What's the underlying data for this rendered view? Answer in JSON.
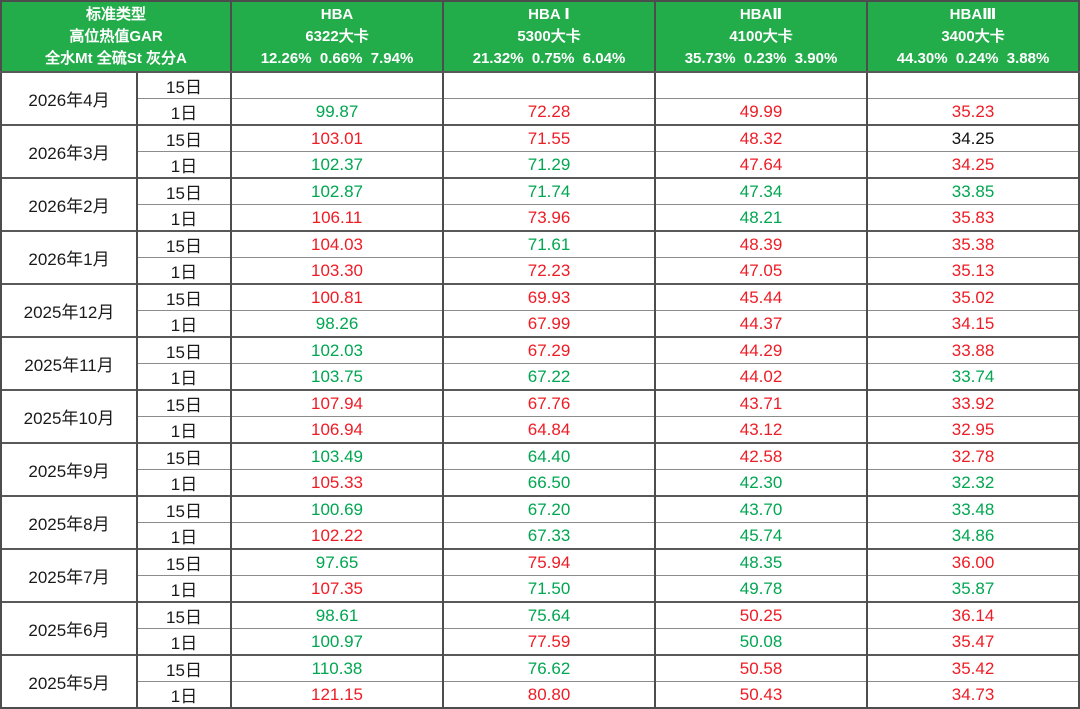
{
  "colors": {
    "header_bg": "#22ac4a",
    "header_text": "#ffffff",
    "green": "#00a651",
    "red": "#ee1c25",
    "black": "#111111",
    "grid_line": "#8c8c8c",
    "column_line": "#4d4d4d"
  },
  "chart_data": {
    "type": "table",
    "header": {
      "spec_lines": [
        "标准类型",
        "高位热值GAR",
        "全水Mt 全硫St 灰分A"
      ],
      "products": [
        {
          "name": "HBA",
          "kcal": "6322大卡",
          "specs": "12.26%  0.66%  7.94%"
        },
        {
          "name": "HBA Ⅰ",
          "kcal": "5300大卡",
          "specs": "21.32%  0.75%  6.04%"
        },
        {
          "name": "HBAⅡ",
          "kcal": "4100大卡",
          "specs": "35.73%  0.23%  3.90%"
        },
        {
          "name": "HBAⅢ",
          "kcal": "3400大卡",
          "specs": "44.30%  0.24%  3.88%"
        }
      ]
    },
    "day_labels": [
      "15日",
      "1日"
    ],
    "months": [
      {
        "month": "2026年4月",
        "d15": [
          {
            "v": "",
            "c": "k"
          },
          {
            "v": "",
            "c": "k"
          },
          {
            "v": "",
            "c": "k"
          },
          {
            "v": "",
            "c": "k"
          }
        ],
        "d1": [
          {
            "v": "99.87",
            "c": "g"
          },
          {
            "v": "72.28",
            "c": "r"
          },
          {
            "v": "49.99",
            "c": "r"
          },
          {
            "v": "35.23",
            "c": "r"
          }
        ]
      },
      {
        "month": "2026年3月",
        "d15": [
          {
            "v": "103.01",
            "c": "r"
          },
          {
            "v": "71.55",
            "c": "r"
          },
          {
            "v": "48.32",
            "c": "r"
          },
          {
            "v": "34.25",
            "c": "k"
          }
        ],
        "d1": [
          {
            "v": "102.37",
            "c": "g"
          },
          {
            "v": "71.29",
            "c": "g"
          },
          {
            "v": "47.64",
            "c": "r"
          },
          {
            "v": "34.25",
            "c": "r"
          }
        ]
      },
      {
        "month": "2026年2月",
        "d15": [
          {
            "v": "102.87",
            "c": "g"
          },
          {
            "v": "71.74",
            "c": "g"
          },
          {
            "v": "47.34",
            "c": "g"
          },
          {
            "v": "33.85",
            "c": "g"
          }
        ],
        "d1": [
          {
            "v": "106.11",
            "c": "r"
          },
          {
            "v": "73.96",
            "c": "r"
          },
          {
            "v": "48.21",
            "c": "g"
          },
          {
            "v": "35.83",
            "c": "r"
          }
        ]
      },
      {
        "month": "2026年1月",
        "d15": [
          {
            "v": "104.03",
            "c": "r"
          },
          {
            "v": "71.61",
            "c": "g"
          },
          {
            "v": "48.39",
            "c": "r"
          },
          {
            "v": "35.38",
            "c": "r"
          }
        ],
        "d1": [
          {
            "v": "103.30",
            "c": "r"
          },
          {
            "v": "72.23",
            "c": "r"
          },
          {
            "v": "47.05",
            "c": "r"
          },
          {
            "v": "35.13",
            "c": "r"
          }
        ]
      },
      {
        "month": "2025年12月",
        "d15": [
          {
            "v": "100.81",
            "c": "r"
          },
          {
            "v": "69.93",
            "c": "r"
          },
          {
            "v": "45.44",
            "c": "r"
          },
          {
            "v": "35.02",
            "c": "r"
          }
        ],
        "d1": [
          {
            "v": "98.26",
            "c": "g"
          },
          {
            "v": "67.99",
            "c": "r"
          },
          {
            "v": "44.37",
            "c": "r"
          },
          {
            "v": "34.15",
            "c": "r"
          }
        ]
      },
      {
        "month": "2025年11月",
        "d15": [
          {
            "v": "102.03",
            "c": "g"
          },
          {
            "v": "67.29",
            "c": "r"
          },
          {
            "v": "44.29",
            "c": "r"
          },
          {
            "v": "33.88",
            "c": "r"
          }
        ],
        "d1": [
          {
            "v": "103.75",
            "c": "g"
          },
          {
            "v": "67.22",
            "c": "g"
          },
          {
            "v": "44.02",
            "c": "r"
          },
          {
            "v": "33.74",
            "c": "g"
          }
        ]
      },
      {
        "month": "2025年10月",
        "d15": [
          {
            "v": "107.94",
            "c": "r"
          },
          {
            "v": "67.76",
            "c": "r"
          },
          {
            "v": "43.71",
            "c": "r"
          },
          {
            "v": "33.92",
            "c": "r"
          }
        ],
        "d1": [
          {
            "v": "106.94",
            "c": "r"
          },
          {
            "v": "64.84",
            "c": "r"
          },
          {
            "v": "43.12",
            "c": "r"
          },
          {
            "v": "32.95",
            "c": "r"
          }
        ]
      },
      {
        "month": "2025年9月",
        "d15": [
          {
            "v": "103.49",
            "c": "g"
          },
          {
            "v": "64.40",
            "c": "g"
          },
          {
            "v": "42.58",
            "c": "r"
          },
          {
            "v": "32.78",
            "c": "r"
          }
        ],
        "d1": [
          {
            "v": "105.33",
            "c": "r"
          },
          {
            "v": "66.50",
            "c": "g"
          },
          {
            "v": "42.30",
            "c": "g"
          },
          {
            "v": "32.32",
            "c": "g"
          }
        ]
      },
      {
        "month": "2025年8月",
        "d15": [
          {
            "v": "100.69",
            "c": "g"
          },
          {
            "v": "67.20",
            "c": "g"
          },
          {
            "v": "43.70",
            "c": "g"
          },
          {
            "v": "33.48",
            "c": "g"
          }
        ],
        "d1": [
          {
            "v": "102.22",
            "c": "r"
          },
          {
            "v": "67.33",
            "c": "g"
          },
          {
            "v": "45.74",
            "c": "g"
          },
          {
            "v": "34.86",
            "c": "g"
          }
        ]
      },
      {
        "month": "2025年7月",
        "d15": [
          {
            "v": "97.65",
            "c": "g"
          },
          {
            "v": "75.94",
            "c": "r"
          },
          {
            "v": "48.35",
            "c": "g"
          },
          {
            "v": "36.00",
            "c": "r"
          }
        ],
        "d1": [
          {
            "v": "107.35",
            "c": "r"
          },
          {
            "v": "71.50",
            "c": "g"
          },
          {
            "v": "49.78",
            "c": "g"
          },
          {
            "v": "35.87",
            "c": "g"
          }
        ]
      },
      {
        "month": "2025年6月",
        "d15": [
          {
            "v": "98.61",
            "c": "g"
          },
          {
            "v": "75.64",
            "c": "g"
          },
          {
            "v": "50.25",
            "c": "r"
          },
          {
            "v": "36.14",
            "c": "r"
          }
        ],
        "d1": [
          {
            "v": "100.97",
            "c": "g"
          },
          {
            "v": "77.59",
            "c": "r"
          },
          {
            "v": "50.08",
            "c": "g"
          },
          {
            "v": "35.47",
            "c": "r"
          }
        ]
      },
      {
        "month": "2025年5月",
        "d15": [
          {
            "v": "110.38",
            "c": "g"
          },
          {
            "v": "76.62",
            "c": "g"
          },
          {
            "v": "50.58",
            "c": "r"
          },
          {
            "v": "35.42",
            "c": "r"
          }
        ],
        "d1": [
          {
            "v": "121.15",
            "c": "r"
          },
          {
            "v": "80.80",
            "c": "r"
          },
          {
            "v": "50.43",
            "c": "r"
          },
          {
            "v": "34.73",
            "c": "r"
          }
        ]
      }
    ]
  }
}
